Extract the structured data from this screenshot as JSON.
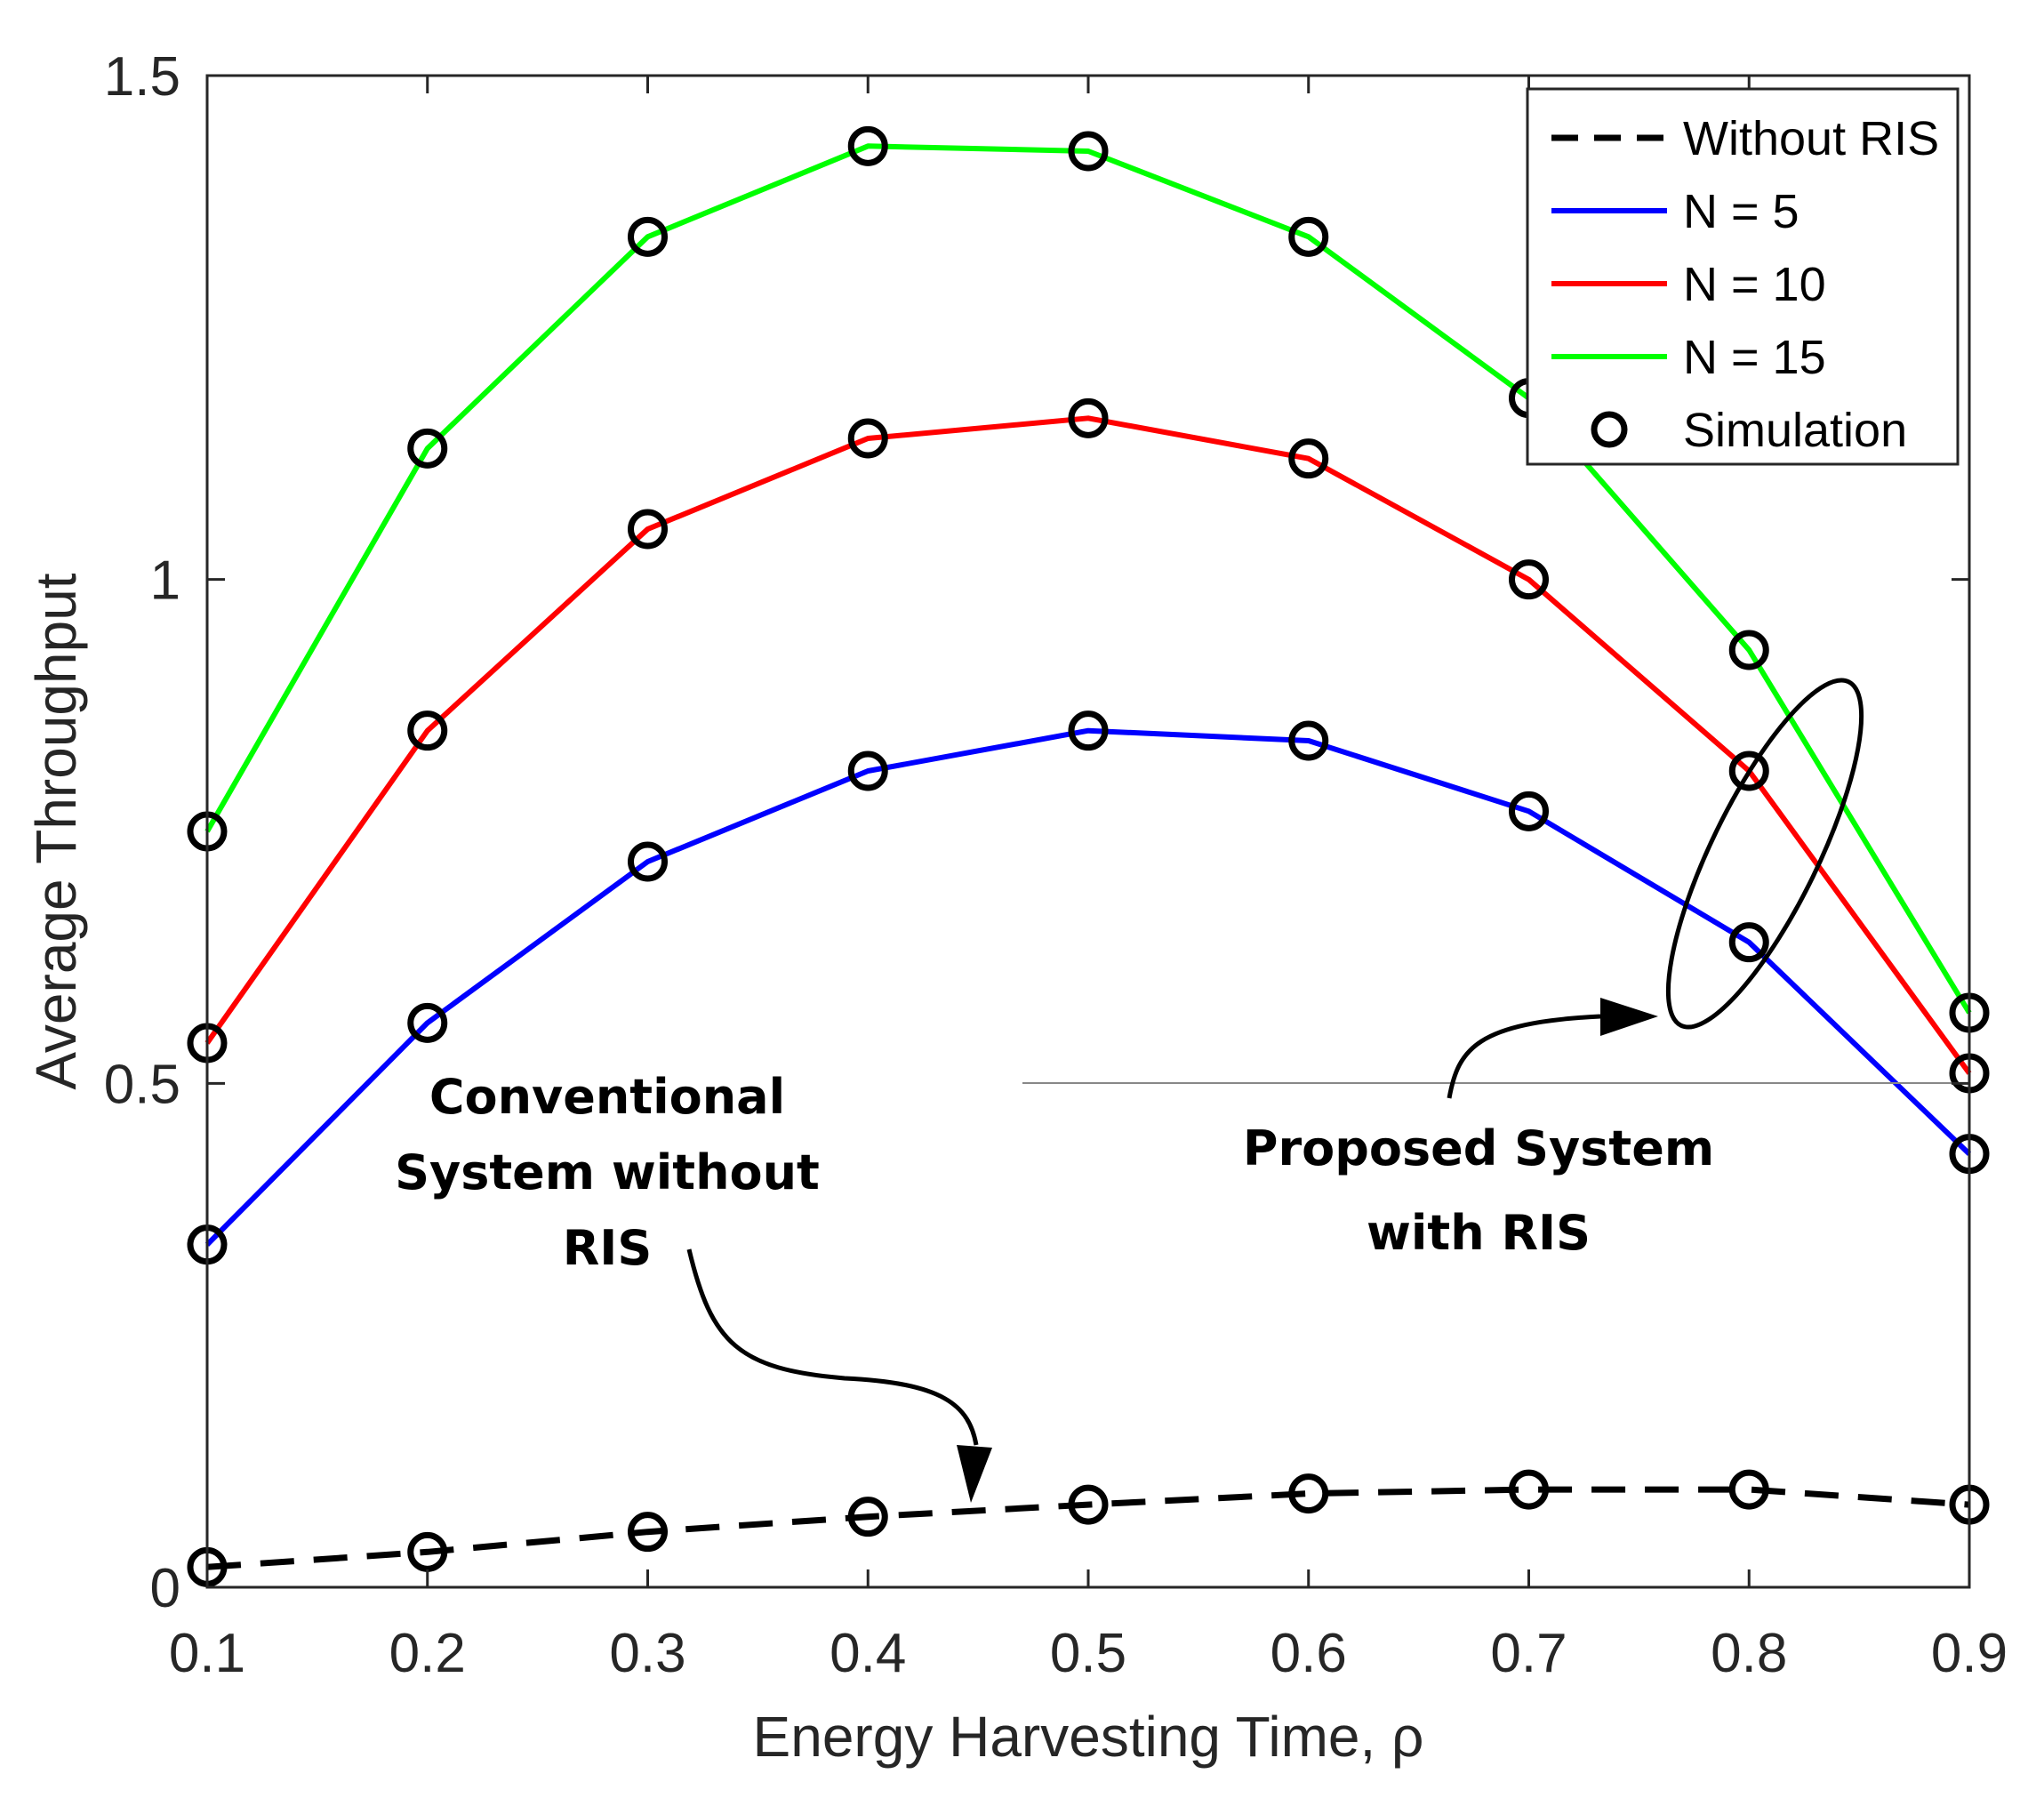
{
  "chart_data": {
    "type": "line",
    "title": "",
    "xlabel": "Energy Harvesting Time, ρ",
    "ylabel": "Average Throughput",
    "xlim": [
      0.1,
      0.9
    ],
    "ylim": [
      0,
      1.5
    ],
    "x": [
      0.1,
      0.2,
      0.3,
      0.4,
      0.5,
      0.6,
      0.7,
      0.8,
      0.9
    ],
    "xticks": [
      "0.1",
      "0.2",
      "0.3",
      "0.4",
      "0.5",
      "0.6",
      "0.7",
      "0.8",
      "0.9"
    ],
    "yticks": [
      {
        "value": 0,
        "label": "0"
      },
      {
        "value": 0.5,
        "label": "0.5"
      },
      {
        "value": 1,
        "label": "1"
      },
      {
        "value": 1.5,
        "label": "1.5"
      }
    ],
    "grid": false,
    "legend_position": "top-right",
    "series": [
      {
        "name": "Without RIS",
        "color": "#000000",
        "dash": true,
        "values": [
          0.02,
          0.035,
          0.055,
          0.07,
          0.082,
          0.093,
          0.097,
          0.097,
          0.082
        ]
      },
      {
        "name": "N = 5",
        "color": "#0000ff",
        "dash": false,
        "values": [
          0.34,
          0.56,
          0.72,
          0.81,
          0.85,
          0.84,
          0.77,
          0.64,
          0.43
        ]
      },
      {
        "name": "N = 10",
        "color": "#ff0000",
        "dash": false,
        "values": [
          0.54,
          0.85,
          1.05,
          1.14,
          1.16,
          1.12,
          1.0,
          0.81,
          0.51
        ]
      },
      {
        "name": "N = 15",
        "color": "#00ff00",
        "dash": false,
        "values": [
          0.75,
          1.13,
          1.34,
          1.43,
          1.425,
          1.34,
          1.18,
          0.93,
          0.57
        ]
      }
    ],
    "simulation_label": "Simulation",
    "annotations": [
      {
        "id": "conventional",
        "lines": [
          "Conventional",
          "System without",
          "RIS"
        ]
      },
      {
        "id": "proposed",
        "lines": [
          "Proposed System",
          "with RIS"
        ]
      }
    ]
  }
}
